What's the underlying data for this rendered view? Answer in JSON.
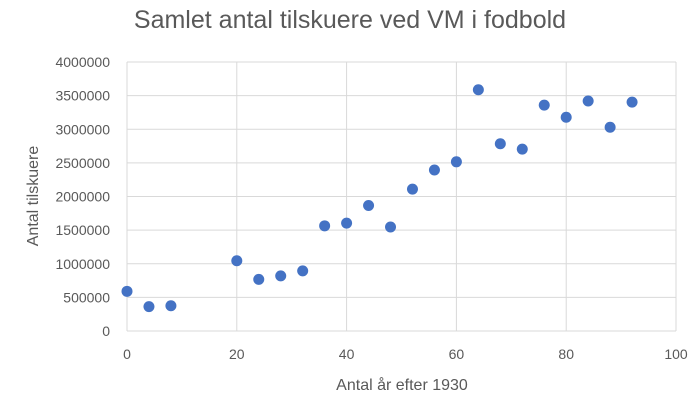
{
  "chart_data": {
    "type": "scatter",
    "title": "Samlet antal tilskuere ved VM i fodbold",
    "xlabel": "Antal år efter 1930",
    "ylabel": "Antal tilskuere",
    "xlim": [
      0,
      100
    ],
    "ylim": [
      0,
      4000000
    ],
    "x_ticks": [
      "0",
      "20",
      "40",
      "60",
      "80",
      "100"
    ],
    "y_ticks": [
      "0",
      "500000",
      "1000000",
      "1500000",
      "2000000",
      "2500000",
      "3000000",
      "3500000",
      "4000000"
    ],
    "grid": true,
    "color": "#4472c4",
    "x": [
      0,
      4,
      8,
      20,
      24,
      28,
      32,
      36,
      40,
      44,
      48,
      52,
      56,
      60,
      64,
      68,
      72,
      76,
      80,
      84,
      88,
      92
    ],
    "y": [
      590000,
      363000,
      375000,
      1045000,
      768000,
      820000,
      894000,
      1564000,
      1604000,
      1866000,
      1546000,
      2110000,
      2394000,
      2516000,
      3587000,
      2785000,
      2705000,
      3359000,
      3178000,
      3420000,
      3030000,
      3404000
    ]
  }
}
